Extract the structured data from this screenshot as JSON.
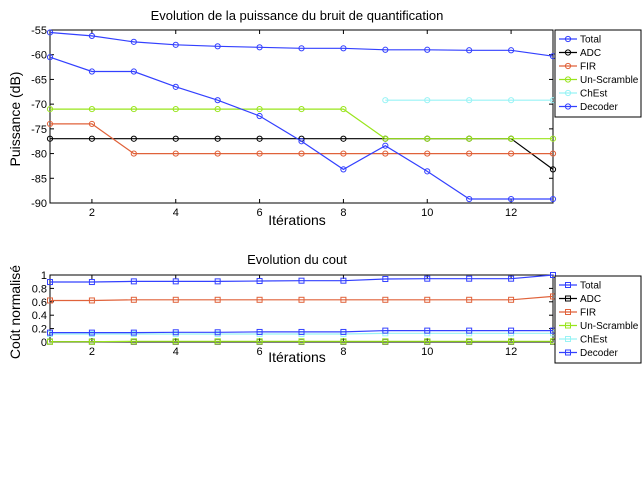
{
  "chart_data": [
    {
      "type": "line",
      "title": "Evolution de la puissance du bruit de quantification",
      "xlabel": "Itérations",
      "ylabel": "Puissance (dB)",
      "xlim": [
        1,
        13
      ],
      "ylim": [
        -90,
        -55
      ],
      "xticks": [
        2,
        4,
        6,
        8,
        10,
        12
      ],
      "yticks": [
        -90,
        -85,
        -80,
        -75,
        -70,
        -65,
        -60,
        -55
      ],
      "grid": false,
      "legend": "top-right",
      "x": [
        1,
        2,
        3,
        4,
        5,
        6,
        7,
        8,
        9,
        10,
        11,
        12,
        13
      ],
      "series": [
        {
          "name": "Total",
          "color": "#3340ff",
          "marker": "circle",
          "values": [
            -55.5,
            -56.2,
            -57.4,
            -58.0,
            -58.3,
            -58.5,
            -58.7,
            -58.7,
            -59.0,
            -59.0,
            -59.1,
            -59.1,
            -60.3
          ]
        },
        {
          "name": "ADC",
          "color": "#000000",
          "marker": "circle",
          "values": [
            -77,
            -77,
            -77,
            -77,
            -77,
            -77,
            -77,
            -77,
            -77,
            -77,
            -77,
            -77,
            -83.2
          ]
        },
        {
          "name": "FIR",
          "color": "#e0623a",
          "marker": "circle",
          "values": [
            -74,
            -74,
            -80,
            -80,
            -80,
            -80,
            -80,
            -80,
            -80,
            -80,
            -80,
            -80,
            -80
          ]
        },
        {
          "name": "Un-Scramble",
          "color": "#99e51c",
          "marker": "circle",
          "values": [
            -71,
            -71,
            -71,
            -71,
            -71,
            -71,
            -71,
            -71,
            -77,
            -77,
            -77,
            -77,
            -77
          ]
        },
        {
          "name": "ChEst",
          "color": "#99f3f5",
          "marker": "circle",
          "values": [
            null,
            null,
            null,
            null,
            null,
            null,
            null,
            null,
            -69.2,
            -69.2,
            -69.2,
            -69.2,
            -69.2
          ]
        },
        {
          "name": "Decoder",
          "color": "#3340ff",
          "marker": "circle",
          "values": [
            -60.5,
            -63.4,
            -63.4,
            -66.5,
            -69.2,
            -72.4,
            -77.5,
            -83.2,
            -78.4,
            -83.6,
            -89.2,
            -89.2,
            -89.2
          ]
        }
      ]
    },
    {
      "type": "line",
      "title": "Evolution du cout",
      "xlabel": "Itérations",
      "ylabel": "Coût normalisé",
      "xlim": [
        1,
        13
      ],
      "ylim": [
        0,
        1
      ],
      "xticks": [
        2,
        4,
        6,
        8,
        10,
        12
      ],
      "yticks": [
        0,
        0.2,
        0.4,
        0.6,
        0.8,
        1
      ],
      "ytick_labels": [
        "0",
        "0.2",
        "0.4",
        "0.6",
        "0.8",
        "1"
      ],
      "grid": false,
      "legend": "top-right",
      "x": [
        1,
        2,
        3,
        4,
        5,
        6,
        7,
        8,
        9,
        10,
        11,
        12,
        13
      ],
      "series": [
        {
          "name": "Total",
          "color": "#3340ff",
          "marker": "square",
          "values": [
            0.895,
            0.895,
            0.905,
            0.905,
            0.905,
            0.91,
            0.915,
            0.915,
            0.94,
            0.945,
            0.945,
            0.945,
            1.0
          ]
        },
        {
          "name": "ADC",
          "color": "#000000",
          "marker": "square",
          "values": [
            0.005,
            0.005,
            0.005,
            0.005,
            0.005,
            0.005,
            0.005,
            0.005,
            0.005,
            0.005,
            0.005,
            0.005,
            0.005
          ]
        },
        {
          "name": "FIR",
          "color": "#e0623a",
          "marker": "square",
          "values": [
            0.62,
            0.62,
            0.63,
            0.63,
            0.63,
            0.63,
            0.63,
            0.63,
            0.63,
            0.63,
            0.63,
            0.63,
            0.68
          ]
        },
        {
          "name": "Un-Scramble",
          "color": "#99e51c",
          "marker": "square",
          "values": [
            0.005,
            0.005,
            0.01,
            0.01,
            0.01,
            0.01,
            0.01,
            0.01,
            0.01,
            0.01,
            0.01,
            0.01,
            0.01
          ]
        },
        {
          "name": "ChEst",
          "color": "#99f3f5",
          "marker": "square",
          "values": [
            0.12,
            0.12,
            0.12,
            0.12,
            0.12,
            0.12,
            0.12,
            0.12,
            0.13,
            0.13,
            0.13,
            0.13,
            0.13
          ]
        },
        {
          "name": "Decoder",
          "color": "#3340ff",
          "marker": "square",
          "values": [
            0.14,
            0.14,
            0.14,
            0.145,
            0.145,
            0.15,
            0.15,
            0.15,
            0.17,
            0.17,
            0.17,
            0.17,
            0.17
          ]
        }
      ]
    }
  ]
}
